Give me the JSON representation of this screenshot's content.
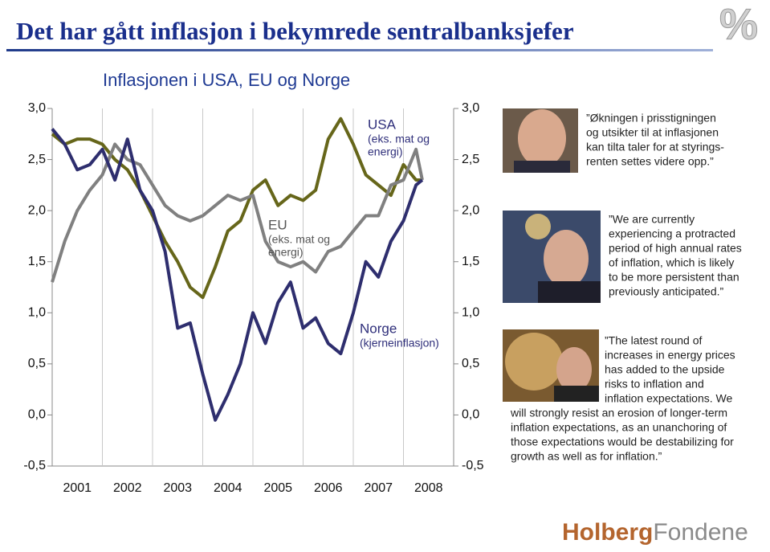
{
  "header": {
    "title": "Det har gått inflasjon i bekymrede sentralbanksjefer",
    "logo": "%"
  },
  "chart_data": {
    "type": "line",
    "title": "Inflasjonen i USA, EU og Norge",
    "x": [
      2001,
      2001.25,
      2001.5,
      2001.75,
      2002,
      2002.25,
      2002.5,
      2002.75,
      2003,
      2003.25,
      2003.5,
      2003.75,
      2004,
      2004.25,
      2004.5,
      2004.75,
      2005,
      2005.25,
      2005.5,
      2005.75,
      2006,
      2006.25,
      2006.5,
      2006.75,
      2007,
      2007.25,
      2007.5,
      2007.75,
      2008,
      2008.25,
      2008.375
    ],
    "series": [
      {
        "name": "USA",
        "color": "#66661a",
        "values": [
          2.75,
          2.65,
          2.7,
          2.7,
          2.65,
          2.5,
          2.4,
          2.2,
          1.95,
          1.7,
          1.5,
          1.25,
          1.15,
          1.45,
          1.8,
          1.9,
          2.2,
          2.3,
          2.05,
          2.15,
          2.1,
          2.2,
          2.7,
          2.9,
          2.65,
          2.35,
          2.25,
          2.15,
          2.45,
          2.3,
          2.3
        ]
      },
      {
        "name": "EU",
        "color": "#808080",
        "values": [
          1.3,
          1.7,
          2.0,
          2.2,
          2.35,
          2.65,
          2.5,
          2.45,
          2.25,
          2.05,
          1.95,
          1.9,
          1.95,
          2.05,
          2.15,
          2.1,
          2.15,
          1.7,
          1.5,
          1.45,
          1.5,
          1.4,
          1.6,
          1.65,
          1.8,
          1.95,
          1.95,
          2.25,
          2.3,
          2.6,
          2.3
        ]
      },
      {
        "name": "Norge",
        "color": "#2e2e6e",
        "values": [
          2.8,
          2.65,
          2.4,
          2.45,
          2.6,
          2.3,
          2.7,
          2.2,
          2.0,
          1.6,
          0.85,
          0.9,
          0.4,
          -0.05,
          0.2,
          0.5,
          1.0,
          0.7,
          1.1,
          1.3,
          0.85,
          0.95,
          0.7,
          0.6,
          1.0,
          1.5,
          1.35,
          1.7,
          1.9,
          2.25,
          2.3
        ]
      }
    ],
    "annotations": [
      [
        "(eks. mat og",
        "energi)"
      ],
      [
        "(eks. mat og",
        "energi)"
      ],
      [
        "(kjerneinflasjon)"
      ]
    ],
    "xlim": [
      2001,
      2009
    ],
    "xticks": [
      {
        "value": 2001.5,
        "label": "2001"
      },
      {
        "value": 2002.5,
        "label": "2002"
      },
      {
        "value": 2003.5,
        "label": "2003"
      },
      {
        "value": 2004.5,
        "label": "2004"
      },
      {
        "value": 2005.5,
        "label": "2005"
      },
      {
        "value": 2006.5,
        "label": "2006"
      },
      {
        "value": 2007.5,
        "label": "2007"
      },
      {
        "value": 2008.5,
        "label": "2008"
      }
    ],
    "ylim": [
      -0.5,
      3.0
    ],
    "yticks": [
      {
        "value": 3.0,
        "label": "3,0"
      },
      {
        "value": 2.5,
        "label": "2,5"
      },
      {
        "value": 2.0,
        "label": "2,0"
      },
      {
        "value": 1.5,
        "label": "1,5"
      },
      {
        "value": 1.0,
        "label": "1,0"
      },
      {
        "value": 0.5,
        "label": "0,5"
      },
      {
        "value": 0.0,
        "label": "0,0"
      },
      {
        "value": -0.5,
        "label": "-0,5"
      }
    ],
    "grid": true
  },
  "quotes": [
    [
      "”Økningen i prisstigningen",
      "og utsikter til at inflasjonen",
      "kan tilta taler for at styrings-",
      "renten settes videre opp.”"
    ],
    [
      "”We are currently",
      "experiencing a protracted",
      "period of high annual rates",
      "of inflation, which is likely",
      "to be more persistent than",
      "previously anticipated.”"
    ],
    [
      "”The latest round of",
      "increases in energy prices",
      "has added to the upside",
      "risks to inflation and",
      "inflation expectations. We",
      "will strongly resist an erosion of longer-term",
      "inflation expectations, as an unanchoring of",
      "those expectations would be destabilizing for",
      "growth as well as for inflation.”"
    ]
  ],
  "footer": {
    "brand_bold": "Holberg",
    "brand_light": "Fondene"
  }
}
